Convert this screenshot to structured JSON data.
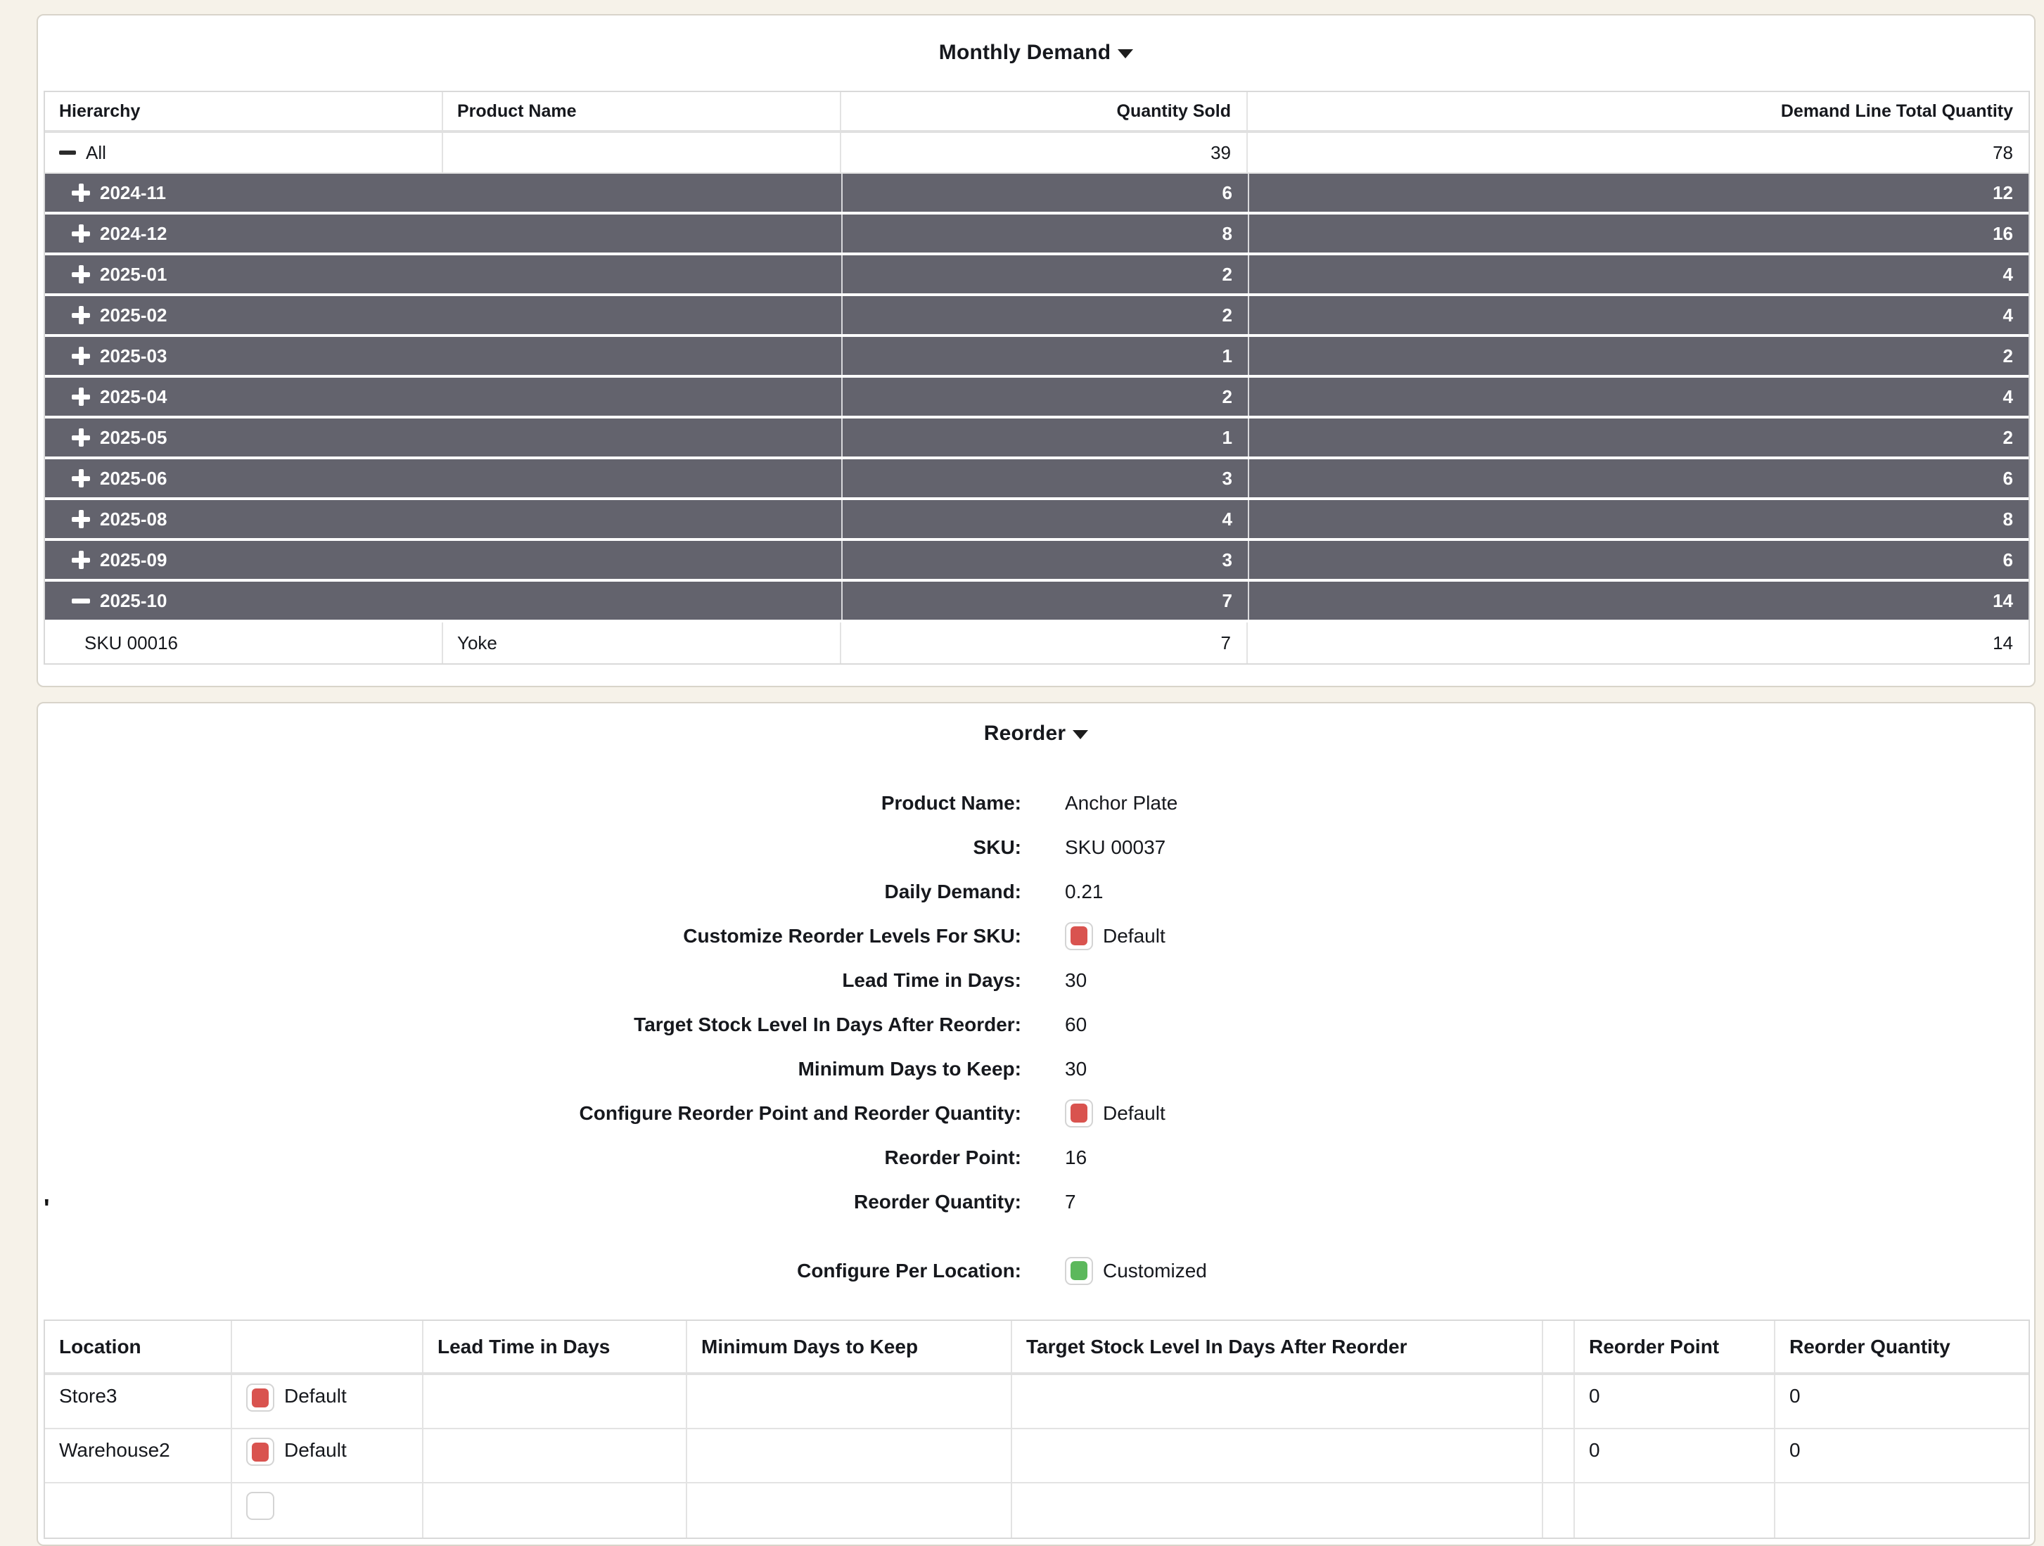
{
  "colors": {
    "page_background": "#f6f2e9",
    "dark_row_background": "#63636d",
    "status_red": "#d9534f",
    "status_green": "#5cb85c"
  },
  "monthly_demand": {
    "title": "Monthly Demand",
    "columns": [
      "Hierarchy",
      "Product Name",
      "Quantity Sold",
      "Demand Line Total Quantity"
    ],
    "all_row": {
      "label": "All",
      "icon": "minus",
      "quantity_sold": "39",
      "demand_total": "78"
    },
    "month_rows": [
      {
        "label": "2024-11",
        "icon": "plus",
        "quantity_sold": "6",
        "demand_total": "12"
      },
      {
        "label": "2024-12",
        "icon": "plus",
        "quantity_sold": "8",
        "demand_total": "16"
      },
      {
        "label": "2025-01",
        "icon": "plus",
        "quantity_sold": "2",
        "demand_total": "4"
      },
      {
        "label": "2025-02",
        "icon": "plus",
        "quantity_sold": "2",
        "demand_total": "4"
      },
      {
        "label": "2025-03",
        "icon": "plus",
        "quantity_sold": "1",
        "demand_total": "2"
      },
      {
        "label": "2025-04",
        "icon": "plus",
        "quantity_sold": "2",
        "demand_total": "4"
      },
      {
        "label": "2025-05",
        "icon": "plus",
        "quantity_sold": "1",
        "demand_total": "2"
      },
      {
        "label": "2025-06",
        "icon": "plus",
        "quantity_sold": "3",
        "demand_total": "6"
      },
      {
        "label": "2025-08",
        "icon": "plus",
        "quantity_sold": "4",
        "demand_total": "8"
      },
      {
        "label": "2025-09",
        "icon": "plus",
        "quantity_sold": "3",
        "demand_total": "6"
      },
      {
        "label": "2025-10",
        "icon": "minus",
        "quantity_sold": "7",
        "demand_total": "14"
      }
    ],
    "detail_row": {
      "hierarchy": "SKU 00016",
      "product_name": "Yoke",
      "quantity_sold": "7",
      "demand_total": "14"
    }
  },
  "reorder": {
    "title": "Reorder",
    "fields": [
      {
        "label": "Product Name:",
        "value": "Anchor Plate"
      },
      {
        "label": "SKU:",
        "value": "SKU 00037"
      },
      {
        "label": "Daily Demand:",
        "value": "0.21"
      },
      {
        "label": "Customize Reorder Levels For SKU:",
        "value": "Default",
        "checkbox": "red"
      },
      {
        "label": "Lead Time in Days:",
        "value": "30"
      },
      {
        "label": "Target Stock Level In Days After Reorder:",
        "value": "60"
      },
      {
        "label": "Minimum Days to Keep:",
        "value": "30"
      },
      {
        "label": "Configure Reorder Point and Reorder Quantity:",
        "value": "Default",
        "checkbox": "red"
      },
      {
        "label": "Reorder Point:",
        "value": "16"
      },
      {
        "label": "Reorder Quantity:",
        "value": "7"
      }
    ],
    "configure_per_location": {
      "label": "Configure Per Location:",
      "value": "Customized",
      "checkbox": "green"
    },
    "stray_mark": "'",
    "location_table": {
      "columns": [
        "Location",
        "",
        "Lead Time in Days",
        "Minimum Days to Keep",
        "Target Stock Level In Days After Reorder",
        "",
        "Reorder Point",
        "Reorder Quantity"
      ],
      "rows": [
        {
          "location": "Store3",
          "status": "Default",
          "lead_time": "",
          "min_days": "",
          "target_stock": "",
          "reorder_point": "0",
          "reorder_quantity": "0"
        },
        {
          "location": "Warehouse2",
          "status": "Default",
          "lead_time": "",
          "min_days": "",
          "target_stock": "",
          "reorder_point": "0",
          "reorder_quantity": "0"
        }
      ]
    }
  }
}
